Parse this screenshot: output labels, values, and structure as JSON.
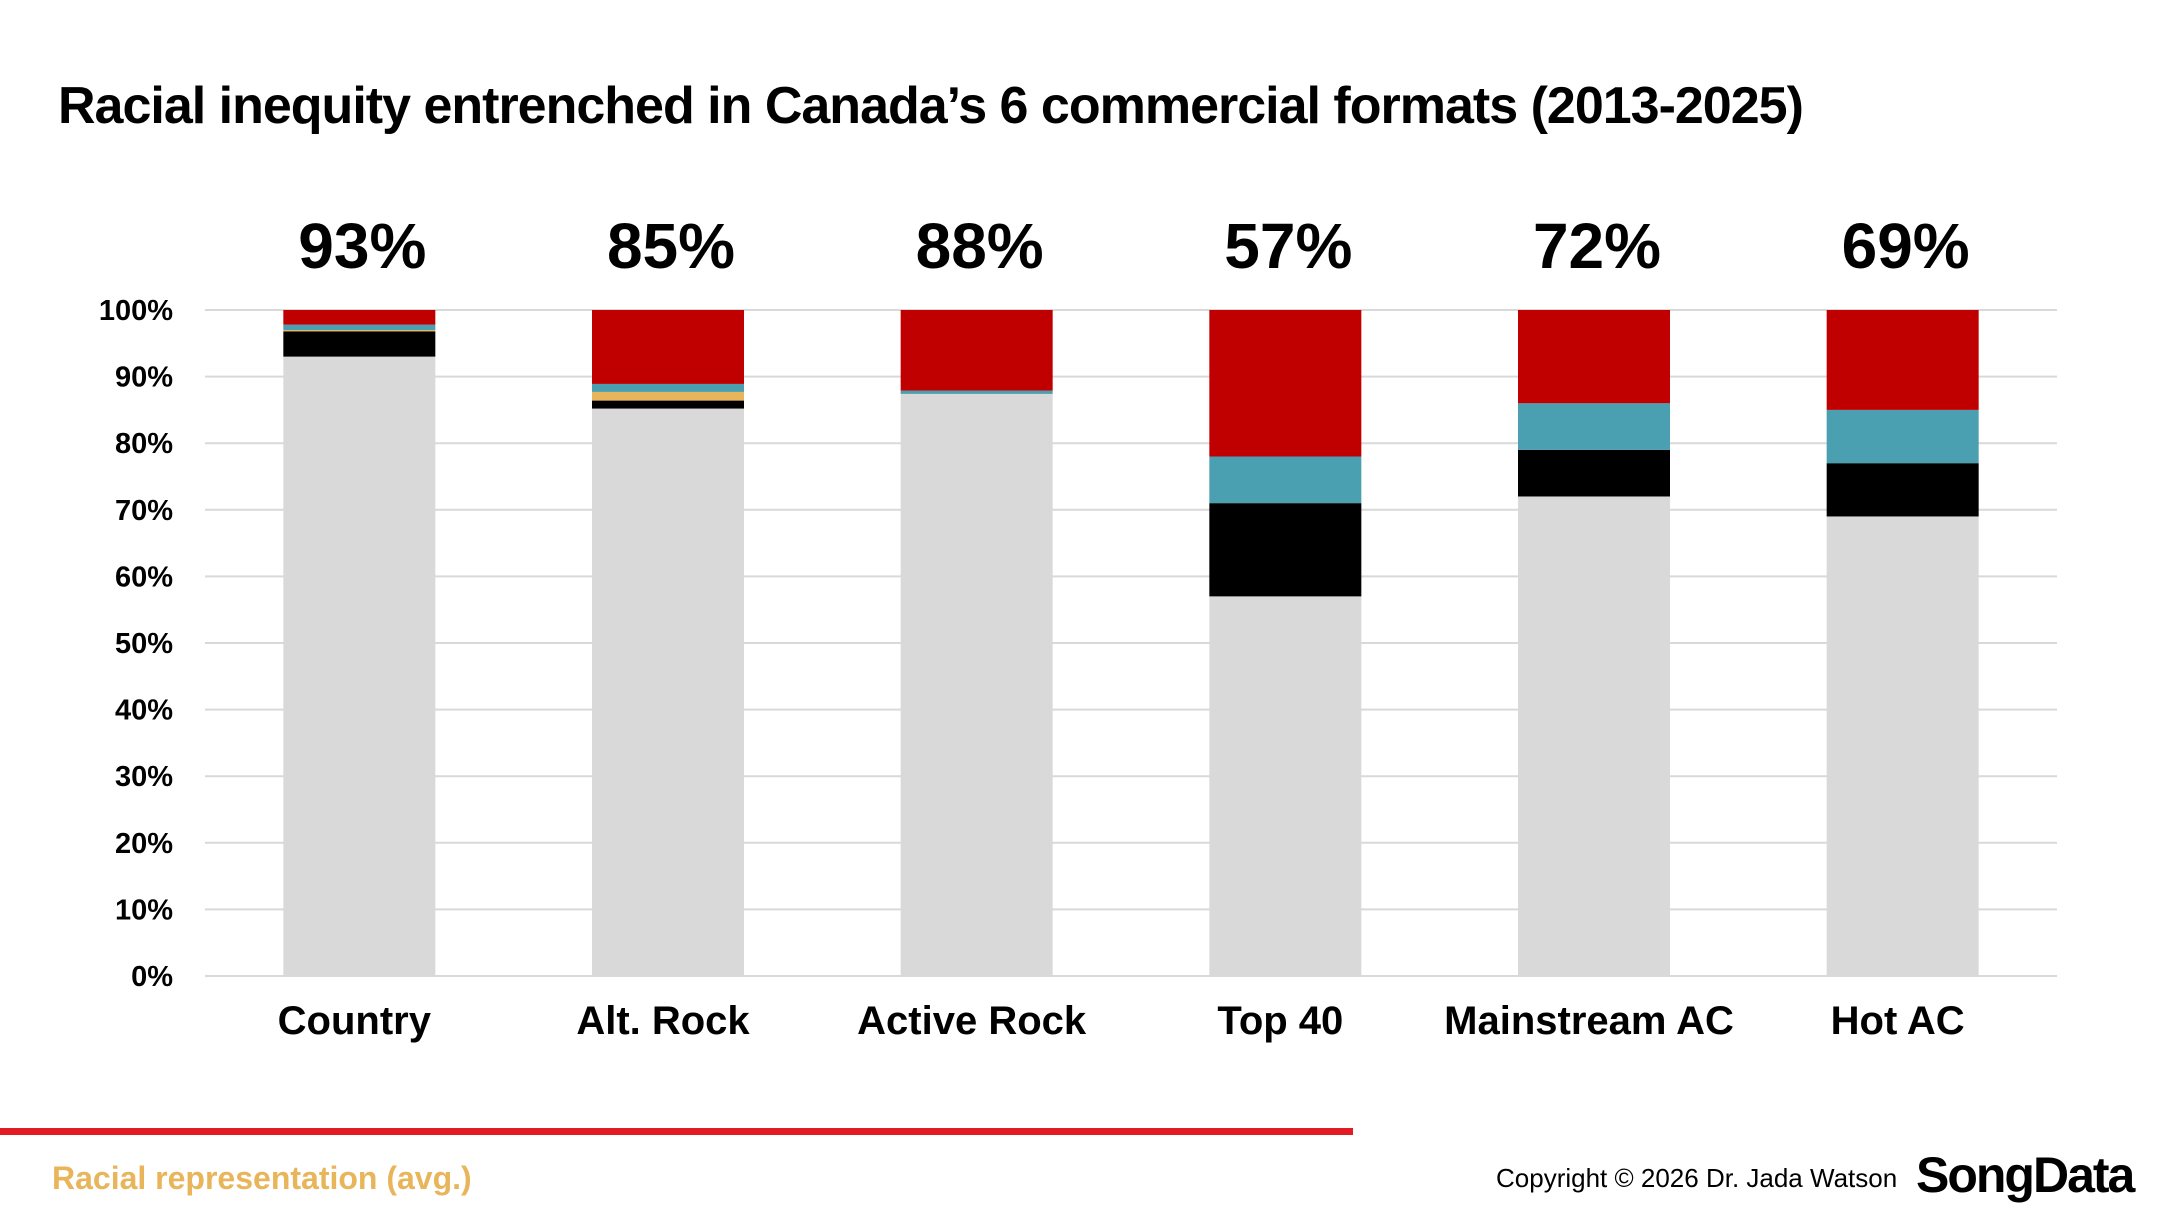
{
  "title": "Racial inequity entrenched in Canada’s 6 commercial formats (2013-2025)",
  "footer": {
    "label": "Racial representation (avg.)",
    "copyright": "Copyright © 2026 Dr. Jada Watson",
    "logo": "SongData"
  },
  "chart_data": {
    "type": "bar",
    "stacked": true,
    "title": "Racial inequity entrenched in Canada’s 6 commercial formats (2013-2025)",
    "categories": [
      "Country",
      "Alt. Rock",
      "Active Rock",
      "Top 40",
      "Mainstream AC",
      "Hot AC"
    ],
    "top_labels": [
      "93%",
      "85%",
      "88%",
      "57%",
      "72%",
      "69%"
    ],
    "ylim": [
      0,
      100
    ],
    "yticks": [
      "0%",
      "10%",
      "20%",
      "30%",
      "40%",
      "50%",
      "60%",
      "70%",
      "80%",
      "90%",
      "100%"
    ],
    "grid": true,
    "legend": "none",
    "series": [
      {
        "color": "#d9d9d9",
        "values": [
          93,
          85.2,
          87.4,
          57,
          72,
          69
        ]
      },
      {
        "color": "#000000",
        "values": [
          3.8,
          1.2,
          0,
          14,
          7,
          8
        ]
      },
      {
        "color": "#e8b55a",
        "values": [
          0.2,
          1.3,
          0,
          0,
          0,
          0
        ]
      },
      {
        "color": "#4a9fb0",
        "values": [
          0.8,
          1.2,
          0.5,
          7,
          7,
          8
        ]
      },
      {
        "color": "#c00000",
        "values": [
          2.2,
          11.1,
          12.1,
          22,
          14,
          15
        ]
      }
    ]
  }
}
